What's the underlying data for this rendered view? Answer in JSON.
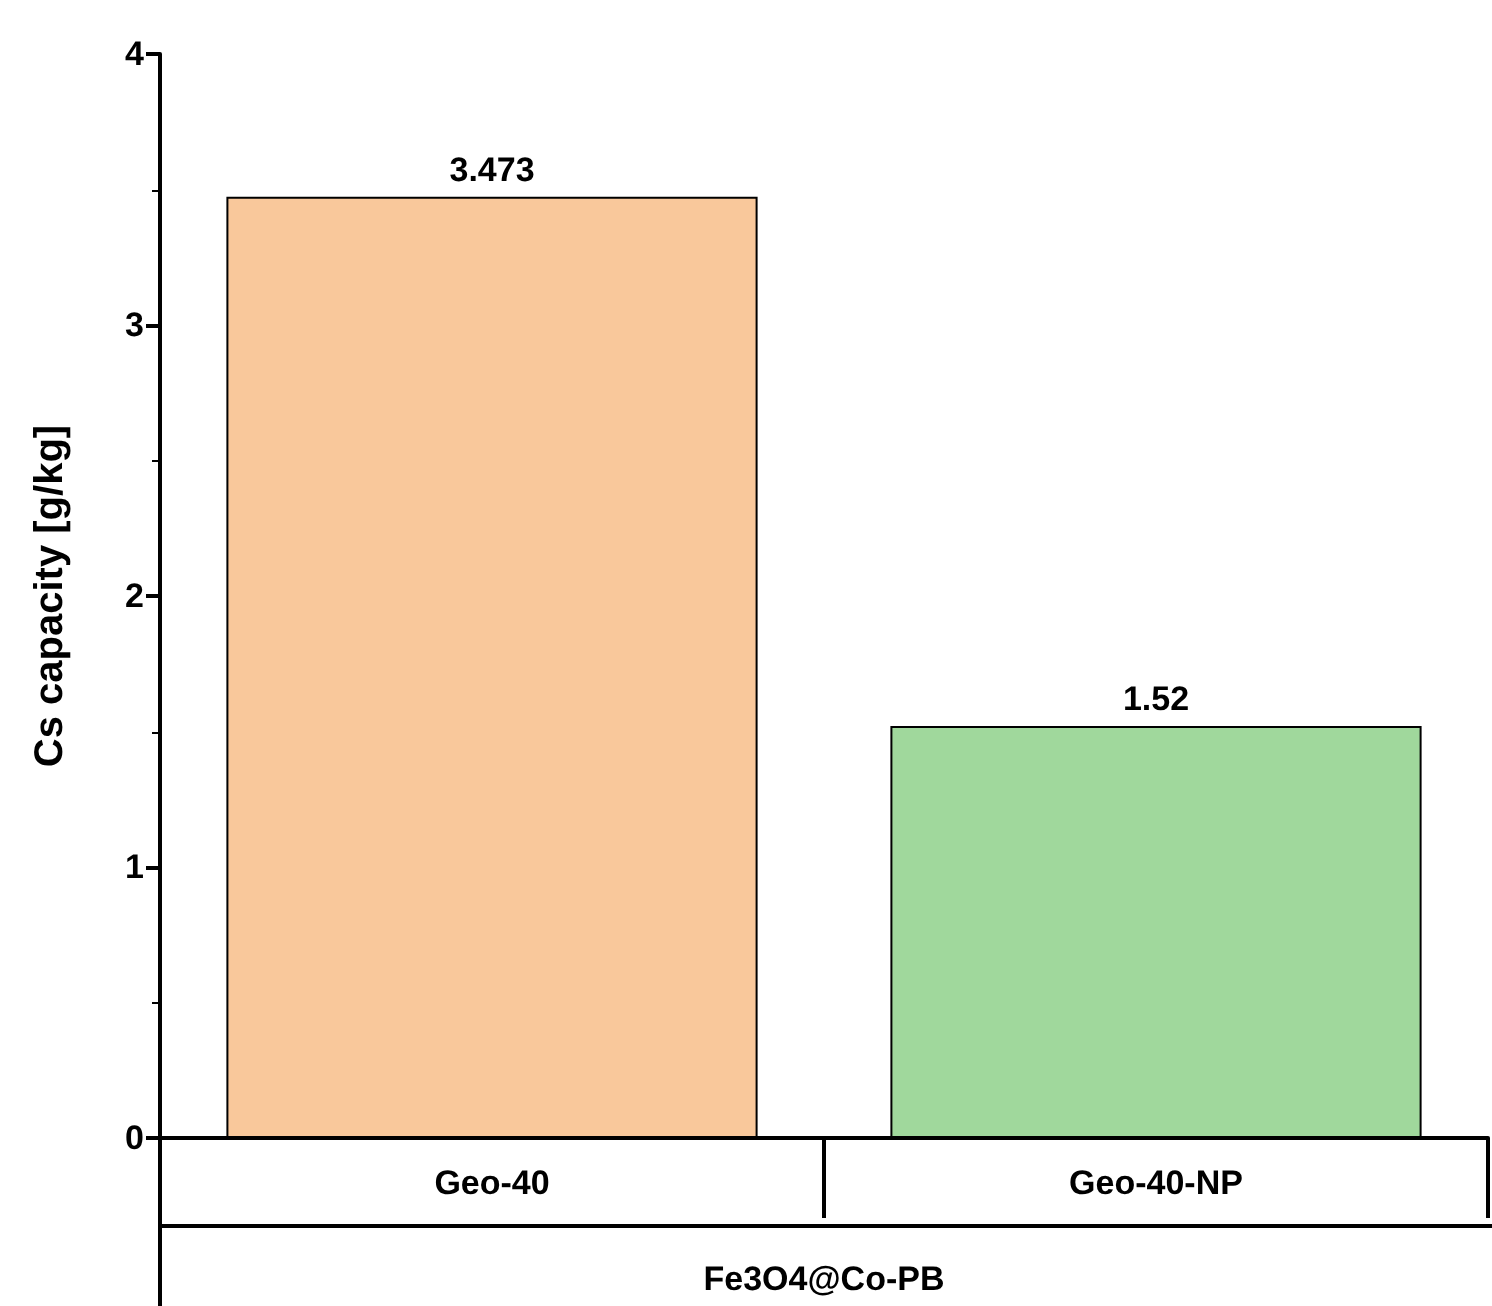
{
  "chart_data": {
    "type": "bar",
    "categories": [
      "Geo-40",
      "Geo-40-NP"
    ],
    "values": [
      3.473,
      1.52
    ],
    "colors": [
      "#f9c89b",
      "#a0d89c"
    ],
    "ylabel": "Cs capacity [g/kg]",
    "xlabel": "Fe3O4@Co-PB",
    "ylim": [
      0,
      4
    ],
    "yticks": [
      0,
      1,
      2,
      3,
      4
    ],
    "grid": false,
    "data_labels": true
  }
}
